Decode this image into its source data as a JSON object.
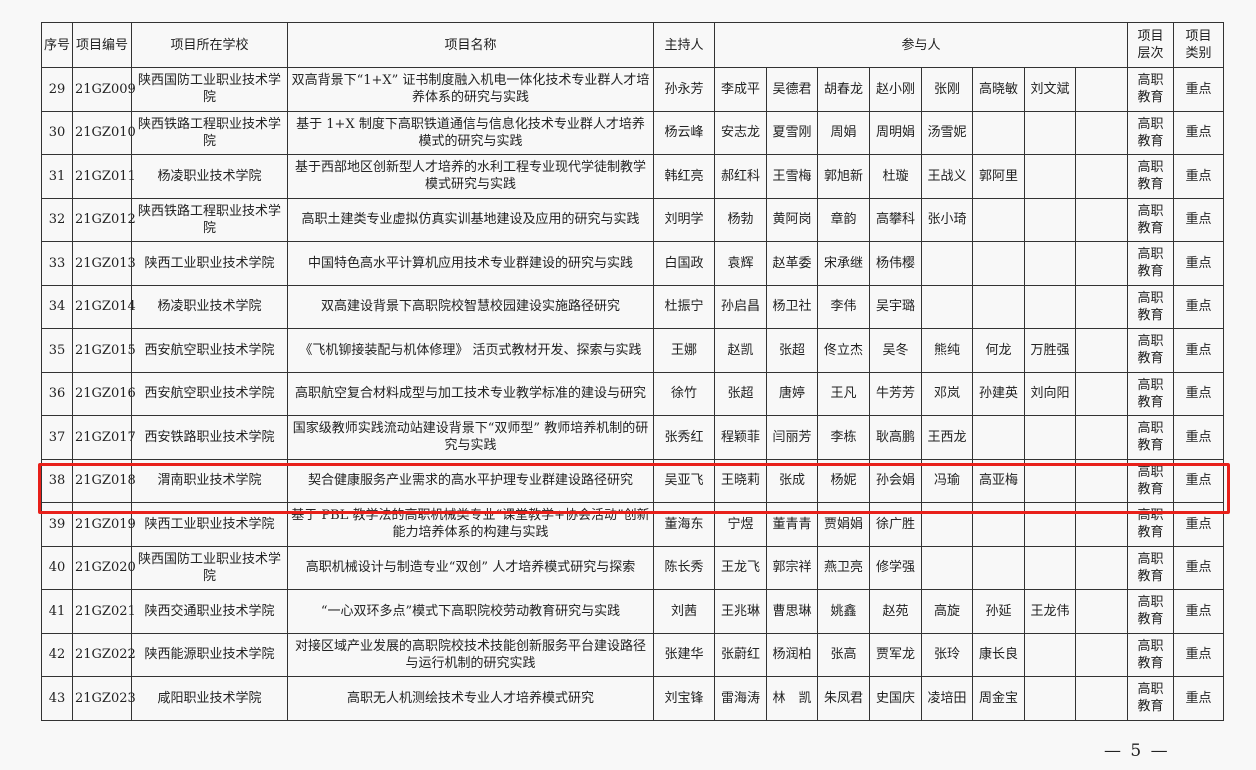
{
  "headers": {
    "seq": "序号",
    "code": "项目编号",
    "school": "项目所在学校",
    "name": "项目名称",
    "leader": "主持人",
    "participants": "参与人",
    "level": "项目\n层次",
    "category": "项目\n类别"
  },
  "rows": [
    {
      "seq": "29",
      "code": "21GZ009",
      "school": "陕西国防工业职业技术学院",
      "name": "双高背景下“1+X” 证书制度融入机电一体化技术专业群人才培养体系的研究与实践",
      "leader": "孙永芳",
      "participants": [
        "李成平",
        "吴德君",
        "胡春龙",
        "赵小刚",
        "张刚",
        "高晓敏",
        "刘文斌",
        ""
      ],
      "level": "高职教育",
      "category": "重点"
    },
    {
      "seq": "30",
      "code": "21GZ010",
      "school": "陕西铁路工程职业技术学院",
      "name": "基于 1+X 制度下高职铁道通信与信息化技术专业群人才培养模式的研究与实践",
      "leader": "杨云峰",
      "participants": [
        "安志龙",
        "夏雪刚",
        "周娟",
        "周明娟",
        "汤雪妮",
        "",
        "",
        ""
      ],
      "level": "高职教育",
      "category": "重点"
    },
    {
      "seq": "31",
      "code": "21GZ011",
      "school": "杨凌职业技术学院",
      "name": "基于西部地区创新型人才培养的水利工程专业现代学徒制教学模式研究与实践",
      "leader": "韩红亮",
      "participants": [
        "郝红科",
        "王雪梅",
        "郭旭新",
        "杜璇",
        "王战义",
        "郭阿里",
        "",
        ""
      ],
      "level": "高职教育",
      "category": "重点"
    },
    {
      "seq": "32",
      "code": "21GZ012",
      "school": "陕西铁路工程职业技术学院",
      "name": "高职土建类专业虚拟仿真实训基地建设及应用的研究与实践",
      "leader": "刘明学",
      "participants": [
        "杨勃",
        "黄阿岗",
        "章韵",
        "高攀科",
        "张小琦",
        "",
        "",
        ""
      ],
      "level": "高职教育",
      "category": "重点"
    },
    {
      "seq": "33",
      "code": "21GZ013",
      "school": "陕西工业职业技术学院",
      "name": "中国特色高水平计算机应用技术专业群建设的研究与实践",
      "leader": "白国政",
      "participants": [
        "袁辉",
        "赵革委",
        "宋承继",
        "杨伟樱",
        "",
        "",
        "",
        ""
      ],
      "level": "高职教育",
      "category": "重点"
    },
    {
      "seq": "34",
      "code": "21GZ014",
      "school": "杨凌职业技术学院",
      "name": "双高建设背景下高职院校智慧校园建设实施路径研究",
      "leader": "杜振宁",
      "participants": [
        "孙启昌",
        "杨卫社",
        "李伟",
        "吴宇璐",
        "",
        "",
        "",
        ""
      ],
      "level": "高职教育",
      "category": "重点"
    },
    {
      "seq": "35",
      "code": "21GZ015",
      "school": "西安航空职业技术学院",
      "name": "《飞机铆接装配与机体修理》 活页式教材开发、探索与实践",
      "leader": "王娜",
      "participants": [
        "赵凯",
        "张超",
        "佟立杰",
        "吴冬",
        "熊纯",
        "何龙",
        "万胜强",
        ""
      ],
      "level": "高职教育",
      "category": "重点"
    },
    {
      "seq": "36",
      "code": "21GZ016",
      "school": "西安航空职业技术学院",
      "name": "高职航空复合材料成型与加工技术专业教学标准的建设与研究",
      "leader": "徐竹",
      "participants": [
        "张超",
        "唐婷",
        "王凡",
        "牛芳芳",
        "邓岚",
        "孙建英",
        "刘向阳",
        ""
      ],
      "level": "高职教育",
      "category": "重点"
    },
    {
      "seq": "37",
      "code": "21GZ017",
      "school": "西安铁路职业技术学院",
      "name": "国家级教师实践流动站建设背景下“双师型” 教师培养机制的研究与实践",
      "leader": "张秀红",
      "participants": [
        "程颖菲",
        "闫丽芳",
        "李栋",
        "耿高鹏",
        "王西龙",
        "",
        "",
        ""
      ],
      "level": "高职教育",
      "category": "重点"
    },
    {
      "seq": "38",
      "code": "21GZ018",
      "school": "渭南职业技术学院",
      "name": "契合健康服务产业需求的高水平护理专业群建设路径研究",
      "leader": "吴亚飞",
      "participants": [
        "王晓莉",
        "张成",
        "杨妮",
        "孙会娟",
        "冯瑜",
        "高亚梅",
        "",
        ""
      ],
      "level": "高职教育",
      "category": "重点",
      "highlighted": true
    },
    {
      "seq": "39",
      "code": "21GZ019",
      "school": "陕西工业职业技术学院",
      "name": "基于 PBL 教学法的高职机械类专业“课堂教学+协会活动”创新能力培养体系的构建与实践",
      "leader": "董海东",
      "participants": [
        "宁煜",
        "董青青",
        "贾娟娟",
        "徐广胜",
        "",
        "",
        "",
        ""
      ],
      "level": "高职教育",
      "category": "重点"
    },
    {
      "seq": "40",
      "code": "21GZ020",
      "school": "陕西国防工业职业技术学院",
      "name": "高职机械设计与制造专业“双创” 人才培养模式研究与探索",
      "leader": "陈长秀",
      "participants": [
        "王龙飞",
        "郭宗祥",
        "燕卫亮",
        "修学强",
        "",
        "",
        "",
        ""
      ],
      "level": "高职教育",
      "category": "重点"
    },
    {
      "seq": "41",
      "code": "21GZ021",
      "school": "陕西交通职业技术学院",
      "name": "“一心双环多点”模式下高职院校劳动教育研究与实践",
      "leader": "刘茜",
      "participants": [
        "王兆琳",
        "曹思琳",
        "姚鑫",
        "赵苑",
        "高旋",
        "孙延",
        "王龙伟",
        ""
      ],
      "level": "高职教育",
      "category": "重点"
    },
    {
      "seq": "42",
      "code": "21GZ022",
      "school": "陕西能源职业技术学院",
      "name": "对接区域产业发展的高职院校技术技能创新服务平台建设路径与运行机制的研究实践",
      "leader": "张建华",
      "participants": [
        "张蔚红",
        "杨润柏",
        "张高",
        "贾军龙",
        "张玲",
        "康长良",
        "",
        ""
      ],
      "level": "高职教育",
      "category": "重点"
    },
    {
      "seq": "43",
      "code": "21GZ023",
      "school": "咸阳职业技术学院",
      "name": "高职无人机测绘技术专业人才培养模式研究",
      "leader": "刘宝锋",
      "participants": [
        "雷海涛",
        "林　凯",
        "朱凤君",
        "史国庆",
        "凌培田",
        "周金宝",
        "",
        ""
      ],
      "level": "高职教育",
      "category": "重点"
    }
  ],
  "highlight_color": "#e8201a",
  "footer": {
    "page_number": "— 5 —"
  }
}
